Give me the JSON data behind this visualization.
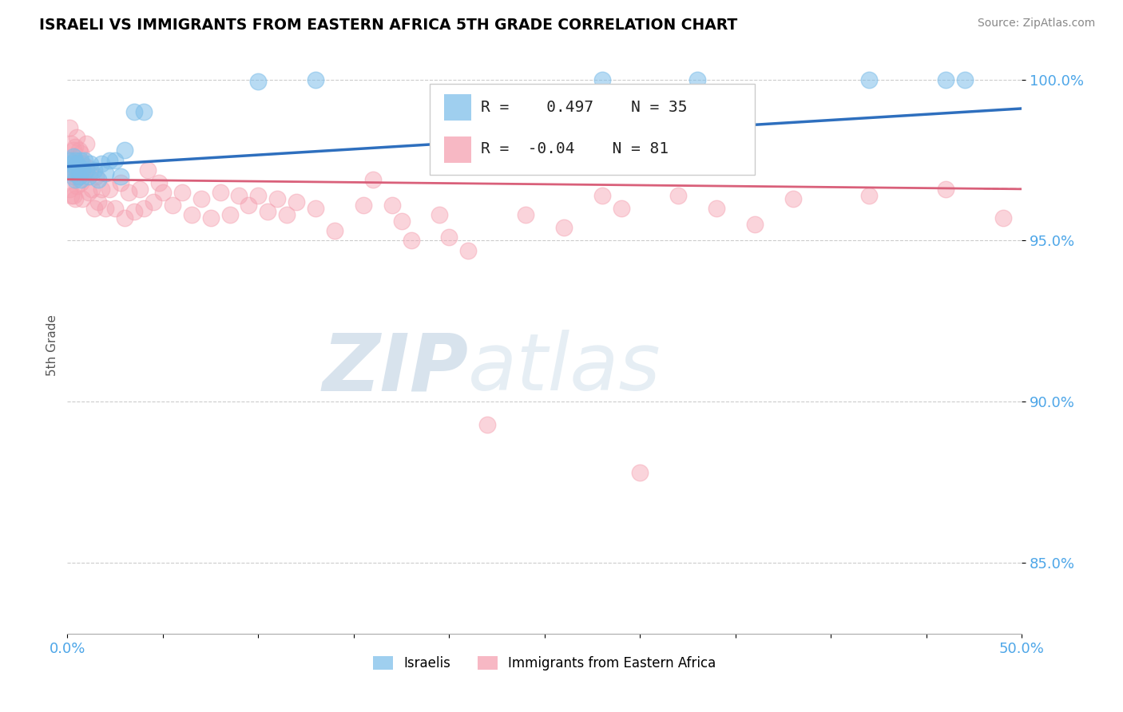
{
  "title": "ISRAELI VS IMMIGRANTS FROM EASTERN AFRICA 5TH GRADE CORRELATION CHART",
  "source": "Source: ZipAtlas.com",
  "ylabel": "5th Grade",
  "xlim": [
    0.0,
    0.5
  ],
  "ylim": [
    0.828,
    1.007
  ],
  "xticks": [
    0.0,
    0.05,
    0.1,
    0.15,
    0.2,
    0.25,
    0.3,
    0.35,
    0.4,
    0.45,
    0.5
  ],
  "xticklabels": [
    "0.0%",
    "",
    "",
    "",
    "",
    "",
    "",
    "",
    "",
    "",
    "50.0%"
  ],
  "yticks": [
    0.85,
    0.9,
    0.95,
    1.0
  ],
  "yticklabels": [
    "85.0%",
    "90.0%",
    "95.0%",
    "100.0%"
  ],
  "blue_R": 0.497,
  "blue_N": 35,
  "pink_R": -0.04,
  "pink_N": 81,
  "blue_color": "#7fbfea",
  "pink_color": "#f5a0b0",
  "blue_line_color": "#2e6fbe",
  "pink_line_color": "#d9607a",
  "watermark_zip": "ZIP",
  "watermark_atlas": "atlas",
  "legend_label_blue": "Israelis",
  "legend_label_pink": "Immigrants from Eastern Africa",
  "blue_line_x0": 0.0,
  "blue_line_y0": 0.973,
  "blue_line_x1": 0.5,
  "blue_line_y1": 0.991,
  "pink_line_x0": 0.0,
  "pink_line_y0": 0.969,
  "pink_line_x1": 0.5,
  "pink_line_y1": 0.966,
  "blue_x": [
    0.001,
    0.002,
    0.002,
    0.003,
    0.003,
    0.004,
    0.004,
    0.005,
    0.005,
    0.006,
    0.006,
    0.007,
    0.007,
    0.008,
    0.009,
    0.01,
    0.011,
    0.012,
    0.014,
    0.016,
    0.018,
    0.02,
    0.022,
    0.025,
    0.028,
    0.03,
    0.035,
    0.04,
    0.1,
    0.13,
    0.28,
    0.33,
    0.42,
    0.46,
    0.47
  ],
  "blue_y": [
    0.975,
    0.974,
    0.972,
    0.976,
    0.971,
    0.975,
    0.969,
    0.974,
    0.972,
    0.973,
    0.97,
    0.975,
    0.969,
    0.972,
    0.975,
    0.972,
    0.97,
    0.974,
    0.972,
    0.969,
    0.974,
    0.971,
    0.975,
    0.975,
    0.97,
    0.978,
    0.99,
    0.99,
    0.9995,
    0.9998,
    0.9998,
    0.9998,
    0.9998,
    0.9998,
    0.9998
  ],
  "pink_x": [
    0.001,
    0.001,
    0.001,
    0.002,
    0.002,
    0.002,
    0.003,
    0.003,
    0.003,
    0.004,
    0.004,
    0.004,
    0.005,
    0.005,
    0.005,
    0.006,
    0.006,
    0.007,
    0.007,
    0.008,
    0.008,
    0.009,
    0.01,
    0.01,
    0.011,
    0.012,
    0.013,
    0.014,
    0.015,
    0.016,
    0.018,
    0.02,
    0.022,
    0.025,
    0.028,
    0.03,
    0.032,
    0.035,
    0.038,
    0.04,
    0.042,
    0.045,
    0.048,
    0.05,
    0.055,
    0.06,
    0.065,
    0.07,
    0.075,
    0.08,
    0.085,
    0.09,
    0.095,
    0.1,
    0.105,
    0.11,
    0.115,
    0.12,
    0.13,
    0.14,
    0.155,
    0.16,
    0.17,
    0.175,
    0.18,
    0.195,
    0.2,
    0.21,
    0.22,
    0.24,
    0.26,
    0.28,
    0.29,
    0.3,
    0.32,
    0.34,
    0.36,
    0.38,
    0.42,
    0.46,
    0.49
  ],
  "pink_y": [
    0.985,
    0.975,
    0.966,
    0.98,
    0.972,
    0.964,
    0.978,
    0.97,
    0.964,
    0.979,
    0.972,
    0.963,
    0.982,
    0.974,
    0.967,
    0.978,
    0.97,
    0.977,
    0.968,
    0.974,
    0.963,
    0.971,
    0.98,
    0.973,
    0.965,
    0.972,
    0.966,
    0.96,
    0.97,
    0.962,
    0.966,
    0.96,
    0.966,
    0.96,
    0.968,
    0.957,
    0.965,
    0.959,
    0.966,
    0.96,
    0.972,
    0.962,
    0.968,
    0.965,
    0.961,
    0.965,
    0.958,
    0.963,
    0.957,
    0.965,
    0.958,
    0.964,
    0.961,
    0.964,
    0.959,
    0.963,
    0.958,
    0.962,
    0.96,
    0.953,
    0.961,
    0.969,
    0.961,
    0.956,
    0.95,
    0.958,
    0.951,
    0.947,
    0.893,
    0.958,
    0.954,
    0.964,
    0.96,
    0.878,
    0.964,
    0.96,
    0.955,
    0.963,
    0.964,
    0.966,
    0.957
  ]
}
